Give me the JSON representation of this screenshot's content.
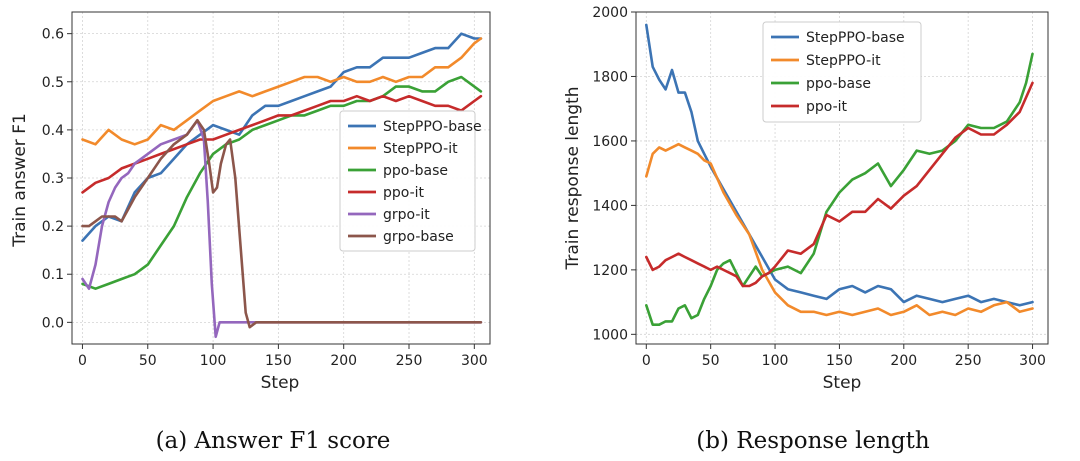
{
  "chart_data": [
    {
      "type": "line",
      "caption": "(a) Answer F1 score",
      "xlabel": "Step",
      "ylabel": "Train answer F1",
      "xlim": [
        -8,
        312
      ],
      "ylim": [
        -0.045,
        0.645
      ],
      "xticks": [
        0,
        50,
        100,
        150,
        200,
        250,
        300
      ],
      "yticks": [
        0.0,
        0.1,
        0.2,
        0.3,
        0.4,
        0.5,
        0.6
      ],
      "ytick_labels": [
        "0.0",
        "0.1",
        "0.2",
        "0.3",
        "0.4",
        "0.5",
        "0.6"
      ],
      "legend_position": "center-right",
      "series": [
        {
          "name": "StepPPO-base",
          "color": "#3c74b4",
          "x": [
            0,
            10,
            20,
            30,
            40,
            50,
            60,
            70,
            80,
            90,
            100,
            110,
            120,
            130,
            140,
            150,
            160,
            170,
            180,
            190,
            200,
            210,
            220,
            230,
            240,
            250,
            260,
            270,
            280,
            290,
            300,
            305
          ],
          "y": [
            0.17,
            0.2,
            0.22,
            0.21,
            0.27,
            0.3,
            0.31,
            0.34,
            0.37,
            0.39,
            0.41,
            0.4,
            0.39,
            0.43,
            0.45,
            0.45,
            0.46,
            0.47,
            0.48,
            0.49,
            0.52,
            0.53,
            0.53,
            0.55,
            0.55,
            0.55,
            0.56,
            0.57,
            0.57,
            0.6,
            0.59,
            0.59
          ]
        },
        {
          "name": "StepPPO-it",
          "color": "#f28a2b",
          "x": [
            0,
            10,
            20,
            30,
            40,
            50,
            60,
            70,
            80,
            90,
            100,
            110,
            120,
            130,
            140,
            150,
            160,
            170,
            180,
            190,
            200,
            210,
            220,
            230,
            240,
            250,
            260,
            270,
            280,
            290,
            300,
            305
          ],
          "y": [
            0.38,
            0.37,
            0.4,
            0.38,
            0.37,
            0.38,
            0.41,
            0.4,
            0.42,
            0.44,
            0.46,
            0.47,
            0.48,
            0.47,
            0.48,
            0.49,
            0.5,
            0.51,
            0.51,
            0.5,
            0.51,
            0.5,
            0.5,
            0.51,
            0.5,
            0.51,
            0.51,
            0.53,
            0.53,
            0.55,
            0.58,
            0.59
          ]
        },
        {
          "name": "ppo-base",
          "color": "#3aa136",
          "x": [
            0,
            10,
            20,
            30,
            40,
            50,
            60,
            70,
            80,
            90,
            100,
            110,
            120,
            130,
            140,
            150,
            160,
            170,
            180,
            190,
            200,
            210,
            220,
            230,
            240,
            250,
            260,
            270,
            280,
            290,
            300,
            305
          ],
          "y": [
            0.08,
            0.07,
            0.08,
            0.09,
            0.1,
            0.12,
            0.16,
            0.2,
            0.26,
            0.31,
            0.35,
            0.37,
            0.38,
            0.4,
            0.41,
            0.42,
            0.43,
            0.43,
            0.44,
            0.45,
            0.45,
            0.46,
            0.46,
            0.47,
            0.49,
            0.49,
            0.48,
            0.48,
            0.5,
            0.51,
            0.49,
            0.48
          ]
        },
        {
          "name": "ppo-it",
          "color": "#c62b2b",
          "x": [
            0,
            10,
            20,
            30,
            40,
            50,
            60,
            70,
            80,
            90,
            100,
            110,
            120,
            130,
            140,
            150,
            160,
            170,
            180,
            190,
            200,
            210,
            220,
            230,
            240,
            250,
            260,
            270,
            280,
            290,
            300,
            305
          ],
          "y": [
            0.27,
            0.29,
            0.3,
            0.32,
            0.33,
            0.34,
            0.35,
            0.36,
            0.37,
            0.38,
            0.38,
            0.39,
            0.4,
            0.41,
            0.42,
            0.43,
            0.43,
            0.44,
            0.45,
            0.46,
            0.46,
            0.47,
            0.46,
            0.47,
            0.46,
            0.47,
            0.46,
            0.45,
            0.45,
            0.44,
            0.46,
            0.47
          ]
        },
        {
          "name": "grpo-it",
          "color": "#9467bd",
          "x": [
            0,
            5,
            10,
            15,
            20,
            25,
            30,
            35,
            40,
            45,
            50,
            60,
            70,
            80,
            88,
            93,
            96,
            99,
            102,
            105,
            110,
            130,
            150,
            175,
            200,
            230,
            260,
            290,
            305
          ],
          "y": [
            0.09,
            0.07,
            0.12,
            0.2,
            0.25,
            0.28,
            0.3,
            0.31,
            0.33,
            0.34,
            0.35,
            0.37,
            0.38,
            0.39,
            0.42,
            0.38,
            0.25,
            0.08,
            -0.03,
            0.0,
            0.0,
            0.0,
            0.0,
            0.0,
            0.0,
            0.0,
            0.0,
            0.0,
            0.0
          ]
        },
        {
          "name": "grpo-base",
          "color": "#8c564b",
          "x": [
            0,
            5,
            10,
            15,
            20,
            25,
            30,
            40,
            50,
            60,
            70,
            80,
            88,
            93,
            97,
            100,
            103,
            106,
            110,
            113,
            117,
            121,
            125,
            128,
            133,
            140,
            150,
            160,
            170,
            180,
            185,
            190,
            200,
            230,
            260,
            290,
            305
          ],
          "y": [
            0.2,
            0.2,
            0.21,
            0.22,
            0.22,
            0.22,
            0.21,
            0.26,
            0.3,
            0.34,
            0.37,
            0.39,
            0.42,
            0.4,
            0.33,
            0.27,
            0.28,
            0.33,
            0.37,
            0.38,
            0.3,
            0.16,
            0.02,
            -0.01,
            0.0,
            0.0,
            0.0,
            0.0,
            0.0,
            0.0,
            0.0,
            0.0,
            0.0,
            0.0,
            0.0,
            0.0,
            0.0
          ]
        }
      ]
    },
    {
      "type": "line",
      "caption": "(b) Response length",
      "xlabel": "Step",
      "ylabel": "Train response length",
      "xlim": [
        -8,
        312
      ],
      "ylim": [
        970,
        2000
      ],
      "xticks": [
        0,
        50,
        100,
        150,
        200,
        250,
        300
      ],
      "yticks": [
        1000,
        1200,
        1400,
        1600,
        1800,
        2000
      ],
      "ytick_labels": [
        "1000",
        "1200",
        "1400",
        "1600",
        "1800",
        "2000"
      ],
      "legend_position": "upper-center",
      "series": [
        {
          "name": "StepPPO-base",
          "color": "#3c74b4",
          "x": [
            0,
            5,
            10,
            15,
            20,
            25,
            30,
            35,
            40,
            45,
            50,
            60,
            70,
            80,
            90,
            100,
            110,
            120,
            130,
            140,
            150,
            160,
            170,
            180,
            190,
            200,
            210,
            220,
            230,
            240,
            250,
            260,
            270,
            280,
            290,
            300
          ],
          "y": [
            1960,
            1830,
            1790,
            1760,
            1820,
            1750,
            1750,
            1690,
            1600,
            1560,
            1520,
            1450,
            1380,
            1310,
            1240,
            1170,
            1140,
            1130,
            1120,
            1110,
            1140,
            1150,
            1130,
            1150,
            1140,
            1100,
            1120,
            1110,
            1100,
            1110,
            1120,
            1100,
            1110,
            1100,
            1090,
            1100
          ]
        },
        {
          "name": "StepPPO-it",
          "color": "#f28a2b",
          "x": [
            0,
            5,
            10,
            15,
            20,
            25,
            30,
            35,
            40,
            45,
            50,
            60,
            70,
            80,
            90,
            100,
            110,
            120,
            130,
            140,
            150,
            160,
            170,
            180,
            190,
            200,
            210,
            220,
            230,
            240,
            250,
            260,
            270,
            280,
            290,
            300
          ],
          "y": [
            1490,
            1560,
            1580,
            1570,
            1580,
            1590,
            1580,
            1570,
            1560,
            1540,
            1530,
            1440,
            1370,
            1310,
            1200,
            1130,
            1090,
            1070,
            1070,
            1060,
            1070,
            1060,
            1070,
            1080,
            1060,
            1070,
            1090,
            1060,
            1070,
            1060,
            1080,
            1070,
            1090,
            1100,
            1070,
            1080
          ]
        },
        {
          "name": "ppo-base",
          "color": "#3aa136",
          "x": [
            0,
            5,
            10,
            15,
            20,
            25,
            30,
            35,
            40,
            45,
            50,
            55,
            60,
            65,
            70,
            75,
            80,
            85,
            90,
            100,
            110,
            120,
            130,
            140,
            150,
            160,
            170,
            180,
            190,
            200,
            210,
            220,
            230,
            240,
            250,
            260,
            270,
            280,
            290,
            295,
            300
          ],
          "y": [
            1090,
            1030,
            1030,
            1040,
            1040,
            1080,
            1090,
            1050,
            1060,
            1110,
            1150,
            1200,
            1220,
            1230,
            1190,
            1150,
            1180,
            1210,
            1180,
            1200,
            1210,
            1190,
            1250,
            1380,
            1440,
            1480,
            1500,
            1530,
            1460,
            1510,
            1570,
            1560,
            1570,
            1600,
            1650,
            1640,
            1640,
            1660,
            1720,
            1780,
            1870
          ]
        },
        {
          "name": "ppo-it",
          "color": "#c62b2b",
          "x": [
            0,
            5,
            10,
            15,
            20,
            25,
            30,
            35,
            40,
            45,
            50,
            55,
            60,
            65,
            70,
            75,
            80,
            85,
            90,
            95,
            100,
            110,
            120,
            130,
            140,
            150,
            160,
            170,
            180,
            190,
            200,
            210,
            220,
            230,
            240,
            250,
            260,
            270,
            280,
            290,
            300
          ],
          "y": [
            1240,
            1200,
            1210,
            1230,
            1240,
            1250,
            1240,
            1230,
            1220,
            1210,
            1200,
            1210,
            1200,
            1190,
            1180,
            1150,
            1150,
            1160,
            1180,
            1190,
            1210,
            1260,
            1250,
            1280,
            1370,
            1350,
            1380,
            1380,
            1420,
            1390,
            1430,
            1460,
            1510,
            1560,
            1610,
            1640,
            1620,
            1620,
            1650,
            1690,
            1780
          ]
        }
      ]
    }
  ]
}
